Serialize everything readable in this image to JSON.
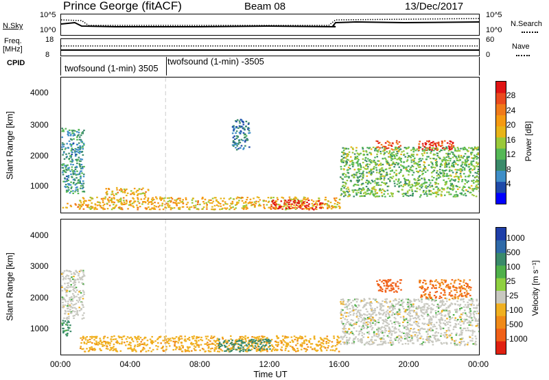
{
  "header": {
    "station": "Prince George (fitACF)",
    "beam": "Beam 08",
    "date": "13/Dec/2017"
  },
  "aux_labels": {
    "nsky": "N.Sky",
    "nsearch": "N.Search",
    "freq": "Freq.",
    "freq_unit": "[MHz]",
    "nave": "Nave",
    "cpid": "CPID",
    "noise_ticks_left": [
      "10^5",
      "10^0"
    ],
    "noise_ticks_right": [
      "10^5",
      "10^0"
    ],
    "freq_ticks": [
      "18",
      "8"
    ],
    "nave_ticks": [
      "60",
      "0"
    ],
    "cpid_1": "twofsound (1-min) 3505",
    "cpid_2": "twofsound (1-min) -3505"
  },
  "axes": {
    "ylabel": "Slant Range [km]",
    "xlabel": "Time UT",
    "y_ticks": [
      "4000",
      "3000",
      "2000",
      "1000"
    ],
    "x_ticks": [
      "00:00",
      "04:00",
      "08:00",
      "12:00",
      "16:00",
      "20:00",
      "00:00"
    ]
  },
  "colorbars": {
    "power": {
      "label": "Power [dB]",
      "ticks": [
        "28",
        "24",
        "20",
        "16",
        "12",
        "8",
        "4"
      ],
      "colors": [
        "#0000ff",
        "#1f4aa8",
        "#3f8ec7",
        "#3a8a6a",
        "#55b856",
        "#9ac93a",
        "#e8b419",
        "#f59a12",
        "#f07a1a",
        "#ea4a1e",
        "#e01414"
      ]
    },
    "velocity": {
      "label": "Velocity [m s⁻¹]",
      "ticks": [
        "1000",
        "500",
        "100",
        "25",
        "-25",
        "-100",
        "-500",
        "-1000"
      ],
      "colors": [
        "#1f3fa8",
        "#2f6aa8",
        "#3a8a6a",
        "#4fb04a",
        "#8fd040",
        "#c8c8c0",
        "#f0b020",
        "#f08a18",
        "#f06018",
        "#e02010"
      ]
    }
  },
  "chart_data": [
    {
      "type": "heatmap",
      "title": "Power",
      "xlabel": "Time UT",
      "ylabel": "Slant Range [km]",
      "xlim": [
        "00:00",
        "24:00"
      ],
      "ylim": [
        180,
        4500
      ],
      "colorbar": "Power [dB]",
      "regions": [
        {
          "t0": 0.0,
          "t1": 1.3,
          "r0": 800,
          "r1": 2900,
          "level": 10
        },
        {
          "t0": 0.0,
          "t1": 1.0,
          "r0": 350,
          "r1": 500,
          "level": 22
        },
        {
          "t0": 2.5,
          "t1": 5.0,
          "r0": 750,
          "r1": 1000,
          "level": 20
        },
        {
          "t0": 1.0,
          "t1": 16.0,
          "r0": 300,
          "r1": 700,
          "level": 20
        },
        {
          "t0": 12.0,
          "t1": 15.0,
          "r0": 300,
          "r1": 600,
          "level": 30
        },
        {
          "t0": 9.8,
          "t1": 10.8,
          "r0": 2200,
          "r1": 3200,
          "level": 8
        },
        {
          "t0": 16.0,
          "t1": 24.0,
          "r0": 700,
          "r1": 2300,
          "level": 14
        },
        {
          "t0": 18.0,
          "t1": 19.5,
          "r0": 2200,
          "r1": 2500,
          "level": 26
        },
        {
          "t0": 20.5,
          "t1": 22.5,
          "r0": 2200,
          "r1": 2500,
          "level": 28
        }
      ]
    },
    {
      "type": "heatmap",
      "title": "Velocity",
      "xlabel": "Time UT",
      "ylabel": "Slant Range [km]",
      "xlim": [
        "00:00",
        "24:00"
      ],
      "ylim": [
        180,
        4500
      ],
      "colorbar": "Velocity [m s-1]",
      "regions": [
        {
          "t0": 0.0,
          "t1": 1.3,
          "r0": 1300,
          "r1": 2900,
          "velocity": 0
        },
        {
          "t0": 0.0,
          "t1": 0.5,
          "r0": 800,
          "r1": 1300,
          "velocity": 120
        },
        {
          "t0": 1.0,
          "t1": 16.0,
          "r0": 300,
          "r1": 800,
          "velocity": -80
        },
        {
          "t0": 9.0,
          "t1": 12.0,
          "r0": 300,
          "r1": 700,
          "velocity": 150
        },
        {
          "t0": 16.0,
          "t1": 24.0,
          "r0": 500,
          "r1": 2000,
          "velocity": 0
        },
        {
          "t0": 18.0,
          "t1": 19.5,
          "r0": 2200,
          "r1": 2600,
          "velocity": -600
        },
        {
          "t0": 20.5,
          "t1": 23.5,
          "r0": 2000,
          "r1": 2600,
          "velocity": -500
        }
      ]
    }
  ]
}
